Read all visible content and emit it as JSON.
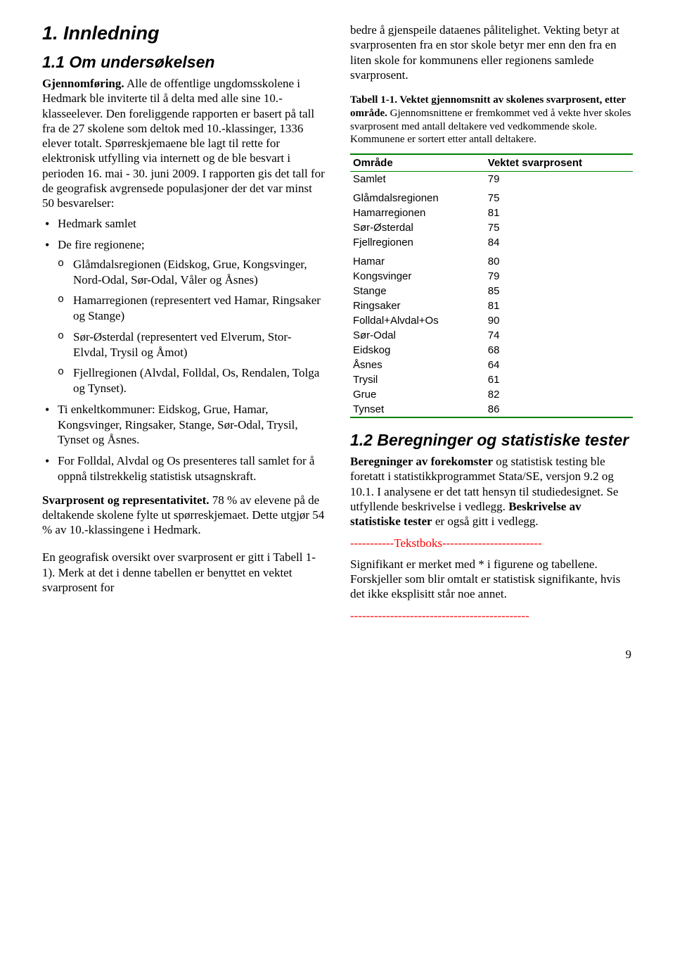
{
  "left": {
    "h1": "1. Innledning",
    "h2": "1.1 Om undersøkelsen",
    "p1_bold": "Gjennomføring.",
    "p1_rest": " Alle de offentlige ungdomsskolene i Hedmark ble inviterte til å delta med alle sine 10.-klasseelever. Den foreliggende rapporten er basert på tall fra de 27 skolene som deltok med 10.-klassinger, 1336 elever totalt. Spørreskjemaene ble lagt til rette for elektronisk utfylling via internett og de ble besvart i perioden 16. mai - 30. juni 2009. I rapporten gis det tall for de geografisk avgrensede populasjoner der det var minst 50 besvarelser:",
    "bullets": {
      "b1": "Hedmark samlet",
      "b2": "De fire regionene;",
      "sub": {
        "s1": "Glåmdalsregionen (Eidskog, Grue, Kongsvinger, Nord-Odal, Sør-Odal, Våler og Åsnes)",
        "s2": "Hamarregionen (representert ved Hamar, Ringsaker og Stange)",
        "s3": "Sør-Østerdal (representert ved Elverum, Stor-Elvdal, Trysil og Åmot)",
        "s4": "Fjellregionen (Alvdal, Folldal, Os, Rendalen, Tolga og Tynset)."
      },
      "b3": "Ti enkeltkommuner: Eidskog, Grue, Hamar, Kongsvinger, Ringsaker, Stange, Sør-Odal, Trysil, Tynset og Åsnes.",
      "b4": "For Folldal, Alvdal og Os presenteres tall samlet for å oppnå tilstrekkelig statistisk utsagnskraft."
    },
    "p2_bold": "Svarprosent og representativitet.",
    "p2_rest": " 78 % av elevene på de deltakende skolene fylte ut spørreskjemaet. Dette utgjør 54 % av 10.-klassingene i Hedmark.",
    "p3": "En geografisk oversikt over svarprosent er gitt i Tabell 1-1). Merk at det i denne tabellen er benyttet en vektet svarprosent for"
  },
  "right": {
    "p1": "bedre å gjenspeile dataenes pålitelighet. Vekting betyr at svarprosenten fra en stor skole betyr mer enn den fra en liten skole for kommunens eller regionens samlede svarprosent.",
    "caption_bold": "Tabell 1-1. Vektet gjennomsnitt av skolenes svarprosent, etter område.",
    "caption_rest": " Gjennomsnittene er fremkommet ved å vekte hver skoles svarprosent med antall deltakere ved vedkommende skole. Kommunene er sortert etter antall deltakere.",
    "table": {
      "col1": "Område",
      "col2": "Vektet svarprosent",
      "rows": [
        {
          "area": "Samlet",
          "val": "79",
          "section_end": true
        },
        {
          "area": "Glåmdalsregionen",
          "val": "75"
        },
        {
          "area": "Hamarregionen",
          "val": "81"
        },
        {
          "area": "Sør-Østerdal",
          "val": "75"
        },
        {
          "area": "Fjellregionen",
          "val": "84",
          "section_end": true
        },
        {
          "area": "Hamar",
          "val": "80"
        },
        {
          "area": "Kongsvinger",
          "val": "79"
        },
        {
          "area": "Stange",
          "val": "85"
        },
        {
          "area": "Ringsaker",
          "val": "81"
        },
        {
          "area": "Folldal+Alvdal+Os",
          "val": "90"
        },
        {
          "area": "Sør-Odal",
          "val": "74"
        },
        {
          "area": "Eidskog",
          "val": "68"
        },
        {
          "area": "Åsnes",
          "val": "64"
        },
        {
          "area": "Trysil",
          "val": "61"
        },
        {
          "area": "Grue",
          "val": "82"
        },
        {
          "area": "Tynset",
          "val": "86",
          "last": true
        }
      ]
    },
    "h2": "1.2 Beregninger og statistiske tester",
    "p2_bold": "Beregninger av forekomster",
    "p2_rest": " og statistisk testing ble foretatt i statistikkprogrammet Stata/SE, versjon 9.2 og 10.1.  I analysene er det tatt hensyn til studiedesignet. Se utfyllende beskrivelse i vedlegg. ",
    "p2_bold2": "Beskrivelse av statistiske tester",
    "p2_rest2": " er også gitt i vedlegg.",
    "red1": "-----------Tekstboks-------------------------",
    "p3": "Signifikant er merket med * i figurene og tabellene. Forskjeller som blir omtalt er statistisk signifikante, hvis det ikke eksplisitt står noe annet.",
    "red2": "---------------------------------------------"
  },
  "pagenum": "9",
  "colors": {
    "table_border": "#008000",
    "red": "#ff0000"
  }
}
